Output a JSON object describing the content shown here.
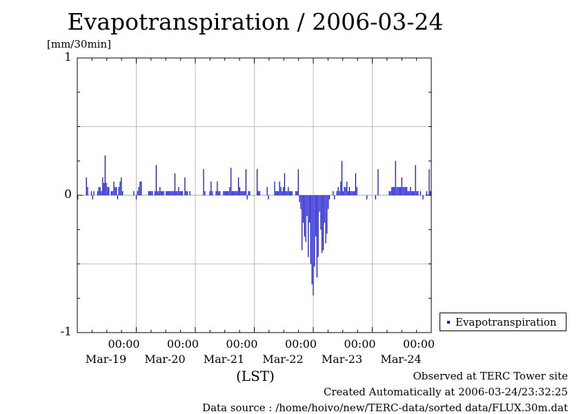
{
  "title": "Evapotranspiration / 2006-03-24",
  "unit_label": "[mm/30min]",
  "xlabel": "(LST)",
  "legend": {
    "entry": "Evapotranspiration"
  },
  "colors": {
    "bar": "#0000dd",
    "grid": "#aaaaaa",
    "axis": "#000000"
  },
  "footer": {
    "line1": "Observed at TERC Tower site",
    "line2": "Created Automatically at 2006-03-24/23:32:25",
    "line3": "Data source : /home/hoivo/new/TERC-data/sorted  data/FLUX.30m.dat"
  },
  "chart_data": {
    "type": "bar",
    "title": "Evapotranspiration / 2006-03-24",
    "xlabel": "(LST)",
    "ylabel": "[mm/30min]",
    "ylim": [
      -1,
      1
    ],
    "yticks": [
      "1",
      "0",
      "-1"
    ],
    "xticks": [
      {
        "time": "00:00",
        "date": "Mar-19"
      },
      {
        "time": "00:00",
        "date": "Mar-20"
      },
      {
        "time": "00:00",
        "date": "Mar-21"
      },
      {
        "time": "00:00",
        "date": "Mar-22"
      },
      {
        "time": "00:00",
        "date": "Mar-23"
      },
      {
        "time": "00:00",
        "date": "Mar-24"
      }
    ],
    "x_range_days": [
      "2006-03-18 00:00",
      "2006-03-24 00:00"
    ],
    "grid": true,
    "legend_position": "right",
    "series": [
      {
        "name": "Evapotranspiration",
        "step": "30min",
        "values": [
          -0.03,
          0,
          0,
          0,
          0,
          0,
          0,
          0.13,
          0.06,
          0,
          0,
          0.03,
          -0.03,
          0.03,
          0,
          0,
          0.03,
          0.06,
          0.06,
          0.03,
          0.13,
          0.09,
          0.29,
          0.09,
          0.06,
          0.06,
          0,
          0.03,
          0.03,
          0.1,
          0.06,
          0.06,
          -0.03,
          0.06,
          0.1,
          0.13,
          0.03,
          0,
          0,
          0,
          0,
          0,
          0,
          0,
          0,
          0.03,
          0,
          -0.03,
          0.03,
          0.06,
          0.1,
          0.1,
          0,
          0,
          0,
          0,
          0,
          0.03,
          0.03,
          0.03,
          0.03,
          0,
          0.03,
          0.22,
          0.03,
          0.03,
          0.06,
          0.03,
          0.03,
          0.03,
          0,
          0.03,
          0.03,
          0.03,
          0.03,
          0.03,
          0.03,
          0.03,
          0.16,
          0.03,
          0.03,
          0.06,
          0.03,
          0.03,
          0.03,
          0,
          0.13,
          0.03,
          0.03,
          0,
          0.03,
          0,
          0,
          0,
          0,
          0,
          0,
          0,
          0,
          0,
          0,
          0.19,
          0.03,
          0,
          0,
          0,
          0.03,
          0.1,
          0.03,
          0,
          0,
          0.03,
          0.1,
          0.03,
          0.03,
          0,
          0,
          0.03,
          0.03,
          0.03,
          0.03,
          0.03,
          0.06,
          0.2,
          0.03,
          0.03,
          0.03,
          0.03,
          0.03,
          0.13,
          0.06,
          0.03,
          0.03,
          0.03,
          0.03,
          0.19,
          -0.03,
          0.03,
          0.03,
          0,
          0,
          0,
          0,
          0,
          0.19,
          0.03,
          0.03,
          0,
          0,
          0,
          0,
          0,
          0.06,
          -0.03,
          0,
          0,
          0,
          0,
          0.1,
          0.03,
          0.03,
          0.03,
          0.1,
          0.06,
          0.03,
          0.06,
          0.16,
          0.03,
          0.03,
          0.06,
          0.03,
          0.03,
          0.03,
          0,
          0,
          0.03,
          0.03,
          0.19,
          -0.05,
          -0.1,
          -0.4,
          -0.2,
          -0.3,
          -0.34,
          -0.15,
          -0.45,
          -0.2,
          -0.5,
          -0.65,
          -0.73,
          -0.52,
          -0.3,
          -0.6,
          -0.45,
          -0.12,
          -0.25,
          -0.42,
          -0.4,
          -0.2,
          -0.35,
          -0.28,
          -0.1,
          -0.03,
          0,
          0,
          0.03,
          -0.03,
          0,
          0.03,
          0.06,
          0.03,
          0.1,
          0.25,
          0.03,
          0.06,
          0.06,
          0.1,
          0.03,
          0.06,
          0.03,
          0.03,
          0.03,
          0.03,
          0.16,
          0.06,
          0,
          0,
          0,
          0,
          0,
          0,
          0,
          -0.03,
          0,
          0,
          0,
          0,
          0,
          0,
          -0.03,
          0,
          0.19,
          0,
          0,
          0,
          0,
          0,
          0,
          0,
          0,
          0.03,
          0.03,
          0.06,
          0.06,
          0.06,
          0.25,
          0.06,
          0.06,
          0.06,
          0.06,
          0.13,
          0.06,
          0.06,
          0.06,
          0.06,
          0.03,
          0.03,
          0.06,
          0.03,
          0.03,
          0.03,
          0.22,
          0.03,
          0.03,
          0,
          0.03,
          0,
          -0.03,
          0,
          0,
          0.03,
          0,
          0.19,
          0.03
        ]
      }
    ]
  }
}
